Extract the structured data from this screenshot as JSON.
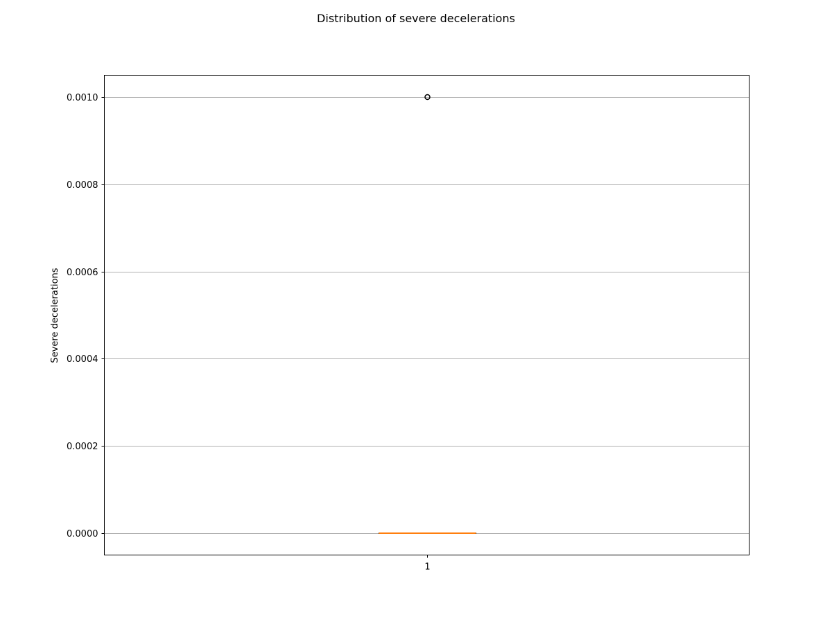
{
  "chart_data": {
    "type": "box",
    "title": "Distribution of severe decelerations",
    "xlabel": "",
    "ylabel": "Severe decelerations",
    "categories": [
      "1"
    ],
    "ylim": [
      -5e-05,
      0.00105
    ],
    "yticks": [
      0.0,
      0.0002,
      0.0004,
      0.0006,
      0.0008,
      0.001
    ],
    "ytick_labels": [
      "0.0000",
      "0.0002",
      "0.0004",
      "0.0006",
      "0.0008",
      "0.0010"
    ],
    "grid": "y",
    "boxes": [
      {
        "category": "1",
        "whisker_low": 0.0,
        "q1": 0.0,
        "median": 0.0,
        "q3": 0.0,
        "whisker_high": 0.0,
        "outliers": [
          0.001
        ]
      }
    ],
    "colors": {
      "box": "#000000",
      "median": "#ff7f0e",
      "grid": "#b0b0b0",
      "outlier": "#000000"
    }
  }
}
